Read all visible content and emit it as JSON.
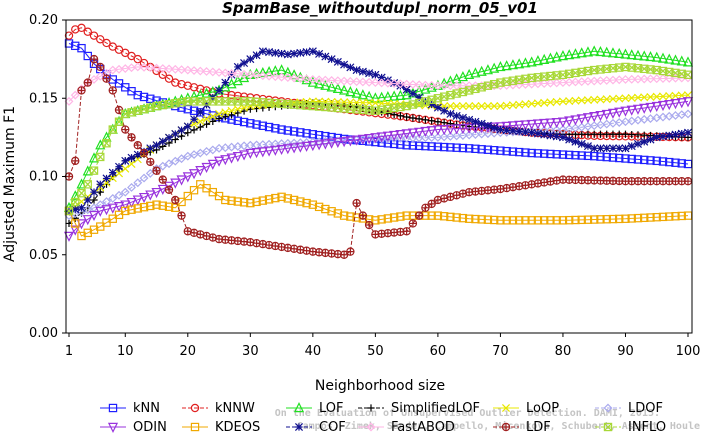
{
  "chart_data": {
    "type": "line",
    "title": "SpamBase_withoutdupl_norm_05_v01",
    "xlabel": "Neighborhood size",
    "ylabel": "Adjusted Maximum F1",
    "xlim": [
      1,
      100
    ],
    "ylim": [
      0,
      0.2
    ],
    "xticks": [
      "1",
      "10",
      "20",
      "30",
      "40",
      "50",
      "60",
      "70",
      "80",
      "90",
      "100"
    ],
    "yticks": [
      "0.00",
      "0.05",
      "0.10",
      "0.15",
      "0.20"
    ],
    "grid": false,
    "legend_position": "bottom",
    "watermark": [
      "Campos, Zimek, Sander, Campello, Micenkova, Schubert, Assent, Houle",
      "On the Evaluation of Unsupervised Outlier Detection. DAMI, 2015."
    ],
    "series": [
      {
        "name": "kNN",
        "color": "#1f1fff",
        "marker": "square",
        "dash": "solid",
        "points": [
          [
            1,
            0.185
          ],
          [
            3,
            0.182
          ],
          [
            5,
            0.172
          ],
          [
            8,
            0.162
          ],
          [
            12,
            0.152
          ],
          [
            18,
            0.145
          ],
          [
            25,
            0.138
          ],
          [
            35,
            0.13
          ],
          [
            45,
            0.124
          ],
          [
            55,
            0.12
          ],
          [
            65,
            0.118
          ],
          [
            75,
            0.115
          ],
          [
            85,
            0.113
          ],
          [
            95,
            0.11
          ],
          [
            100,
            0.108
          ]
        ]
      },
      {
        "name": "kNNW",
        "color": "#e02020",
        "marker": "circle",
        "dash": "dashed",
        "points": [
          [
            1,
            0.19
          ],
          [
            2,
            0.194
          ],
          [
            3,
            0.195
          ],
          [
            5,
            0.19
          ],
          [
            8,
            0.183
          ],
          [
            12,
            0.175
          ],
          [
            18,
            0.16
          ],
          [
            25,
            0.153
          ],
          [
            35,
            0.148
          ],
          [
            45,
            0.143
          ],
          [
            55,
            0.138
          ],
          [
            65,
            0.132
          ],
          [
            75,
            0.128
          ],
          [
            85,
            0.126
          ],
          [
            100,
            0.125
          ]
        ]
      },
      {
        "name": "LOF",
        "color": "#20e020",
        "marker": "triangle",
        "dash": "solid",
        "points": [
          [
            1,
            0.08
          ],
          [
            3,
            0.095
          ],
          [
            6,
            0.12
          ],
          [
            10,
            0.14
          ],
          [
            15,
            0.145
          ],
          [
            20,
            0.15
          ],
          [
            25,
            0.155
          ],
          [
            30,
            0.165
          ],
          [
            35,
            0.168
          ],
          [
            40,
            0.16
          ],
          [
            45,
            0.155
          ],
          [
            50,
            0.15
          ],
          [
            55,
            0.152
          ],
          [
            60,
            0.158
          ],
          [
            65,
            0.165
          ],
          [
            70,
            0.17
          ],
          [
            75,
            0.173
          ],
          [
            80,
            0.177
          ],
          [
            85,
            0.18
          ],
          [
            90,
            0.178
          ],
          [
            95,
            0.176
          ],
          [
            100,
            0.173
          ]
        ]
      },
      {
        "name": "SimplifiedLOF",
        "color": "#000000",
        "marker": "plus",
        "dash": "dashed",
        "points": [
          [
            1,
            0.07
          ],
          [
            4,
            0.08
          ],
          [
            7,
            0.095
          ],
          [
            10,
            0.11
          ],
          [
            15,
            0.117
          ],
          [
            20,
            0.128
          ],
          [
            25,
            0.137
          ],
          [
            30,
            0.143
          ],
          [
            35,
            0.145
          ],
          [
            40,
            0.147
          ],
          [
            45,
            0.146
          ],
          [
            50,
            0.142
          ],
          [
            55,
            0.138
          ],
          [
            60,
            0.135
          ],
          [
            65,
            0.132
          ],
          [
            70,
            0.13
          ],
          [
            75,
            0.128
          ],
          [
            80,
            0.127
          ],
          [
            90,
            0.127
          ],
          [
            100,
            0.125
          ]
        ]
      },
      {
        "name": "LoOP",
        "color": "#e8e800",
        "marker": "cross",
        "dash": "solid",
        "points": [
          [
            1,
            0.078
          ],
          [
            5,
            0.09
          ],
          [
            10,
            0.105
          ],
          [
            15,
            0.12
          ],
          [
            20,
            0.132
          ],
          [
            25,
            0.14
          ],
          [
            30,
            0.145
          ],
          [
            40,
            0.148
          ],
          [
            50,
            0.147
          ],
          [
            60,
            0.145
          ],
          [
            70,
            0.145
          ],
          [
            80,
            0.148
          ],
          [
            90,
            0.15
          ],
          [
            100,
            0.152
          ]
        ]
      },
      {
        "name": "LDOF",
        "color": "#aaaaee",
        "marker": "diamond",
        "dash": "dashed",
        "points": [
          [
            1,
            0.075
          ],
          [
            5,
            0.08
          ],
          [
            10,
            0.09
          ],
          [
            15,
            0.105
          ],
          [
            20,
            0.113
          ],
          [
            25,
            0.118
          ],
          [
            30,
            0.12
          ],
          [
            40,
            0.122
          ],
          [
            50,
            0.124
          ],
          [
            60,
            0.125
          ],
          [
            70,
            0.128
          ],
          [
            80,
            0.13
          ],
          [
            90,
            0.135
          ],
          [
            100,
            0.14
          ]
        ]
      },
      {
        "name": "ODIN",
        "color": "#9933dd",
        "marker": "tridown",
        "dash": "solid",
        "points": [
          [
            1,
            0.062
          ],
          [
            3,
            0.07
          ],
          [
            6,
            0.078
          ],
          [
            10,
            0.082
          ],
          [
            15,
            0.09
          ],
          [
            20,
            0.1
          ],
          [
            25,
            0.11
          ],
          [
            30,
            0.115
          ],
          [
            40,
            0.12
          ],
          [
            50,
            0.125
          ],
          [
            60,
            0.13
          ],
          [
            70,
            0.132
          ],
          [
            80,
            0.135
          ],
          [
            90,
            0.142
          ],
          [
            100,
            0.148
          ]
        ]
      },
      {
        "name": "KDEOS",
        "color": "#f0a800",
        "marker": "square",
        "dash": "solid",
        "points": [
          [
            1,
            0.078
          ],
          [
            3,
            0.062
          ],
          [
            6,
            0.068
          ],
          [
            10,
            0.078
          ],
          [
            15,
            0.082
          ],
          [
            18,
            0.08
          ],
          [
            22,
            0.095
          ],
          [
            24,
            0.09
          ],
          [
            26,
            0.085
          ],
          [
            30,
            0.083
          ],
          [
            35,
            0.087
          ],
          [
            40,
            0.082
          ],
          [
            45,
            0.075
          ],
          [
            50,
            0.072
          ],
          [
            55,
            0.075
          ],
          [
            60,
            0.075
          ],
          [
            65,
            0.073
          ],
          [
            70,
            0.072
          ],
          [
            80,
            0.072
          ],
          [
            90,
            0.073
          ],
          [
            100,
            0.075
          ]
        ]
      },
      {
        "name": "COF",
        "color": "#101090",
        "marker": "asterisk",
        "dash": "dashed",
        "points": [
          [
            1,
            0.078
          ],
          [
            3,
            0.08
          ],
          [
            6,
            0.095
          ],
          [
            10,
            0.11
          ],
          [
            15,
            0.12
          ],
          [
            20,
            0.132
          ],
          [
            25,
            0.155
          ],
          [
            28,
            0.17
          ],
          [
            32,
            0.18
          ],
          [
            36,
            0.178
          ],
          [
            40,
            0.18
          ],
          [
            43,
            0.175
          ],
          [
            47,
            0.168
          ],
          [
            50,
            0.165
          ],
          [
            54,
            0.158
          ],
          [
            58,
            0.148
          ],
          [
            62,
            0.14
          ],
          [
            66,
            0.135
          ],
          [
            70,
            0.13
          ],
          [
            75,
            0.128
          ],
          [
            80,
            0.125
          ],
          [
            85,
            0.118
          ],
          [
            90,
            0.118
          ],
          [
            95,
            0.125
          ],
          [
            100,
            0.128
          ]
        ]
      },
      {
        "name": "FastABOD",
        "color": "#ffb6e6",
        "marker": "diamond",
        "dash": "solid",
        "points": [
          [
            1,
            0.148
          ],
          [
            4,
            0.16
          ],
          [
            8,
            0.168
          ],
          [
            12,
            0.17
          ],
          [
            20,
            0.168
          ],
          [
            30,
            0.165
          ],
          [
            40,
            0.162
          ],
          [
            50,
            0.16
          ],
          [
            60,
            0.158
          ],
          [
            70,
            0.158
          ],
          [
            80,
            0.16
          ],
          [
            90,
            0.162
          ],
          [
            100,
            0.163
          ]
        ]
      },
      {
        "name": "LDF",
        "color": "#a02020",
        "marker": "circleplus",
        "dash": "dashed",
        "points": [
          [
            1,
            0.1
          ],
          [
            2,
            0.11
          ],
          [
            3,
            0.155
          ],
          [
            4,
            0.16
          ],
          [
            5,
            0.175
          ],
          [
            6,
            0.17
          ],
          [
            8,
            0.155
          ],
          [
            10,
            0.13
          ],
          [
            13,
            0.115
          ],
          [
            16,
            0.098
          ],
          [
            18,
            0.085
          ],
          [
            20,
            0.065
          ],
          [
            25,
            0.06
          ],
          [
            30,
            0.058
          ],
          [
            35,
            0.055
          ],
          [
            40,
            0.052
          ],
          [
            45,
            0.05
          ],
          [
            46,
            0.052
          ],
          [
            47,
            0.083
          ],
          [
            48,
            0.075
          ],
          [
            50,
            0.063
          ],
          [
            55,
            0.065
          ],
          [
            58,
            0.08
          ],
          [
            60,
            0.085
          ],
          [
            65,
            0.09
          ],
          [
            70,
            0.092
          ],
          [
            75,
            0.095
          ],
          [
            80,
            0.098
          ],
          [
            90,
            0.097
          ],
          [
            100,
            0.097
          ]
        ]
      },
      {
        "name": "INFLO",
        "color": "#a8d838",
        "marker": "squarecross",
        "dash": "dashed",
        "points": [
          [
            1,
            0.078
          ],
          [
            4,
            0.095
          ],
          [
            8,
            0.13
          ],
          [
            10,
            0.14
          ],
          [
            15,
            0.145
          ],
          [
            20,
            0.148
          ],
          [
            30,
            0.148
          ],
          [
            40,
            0.145
          ],
          [
            50,
            0.142
          ],
          [
            55,
            0.145
          ],
          [
            60,
            0.15
          ],
          [
            65,
            0.155
          ],
          [
            70,
            0.16
          ],
          [
            75,
            0.163
          ],
          [
            80,
            0.165
          ],
          [
            85,
            0.168
          ],
          [
            90,
            0.17
          ],
          [
            95,
            0.168
          ],
          [
            100,
            0.165
          ]
        ]
      }
    ]
  }
}
